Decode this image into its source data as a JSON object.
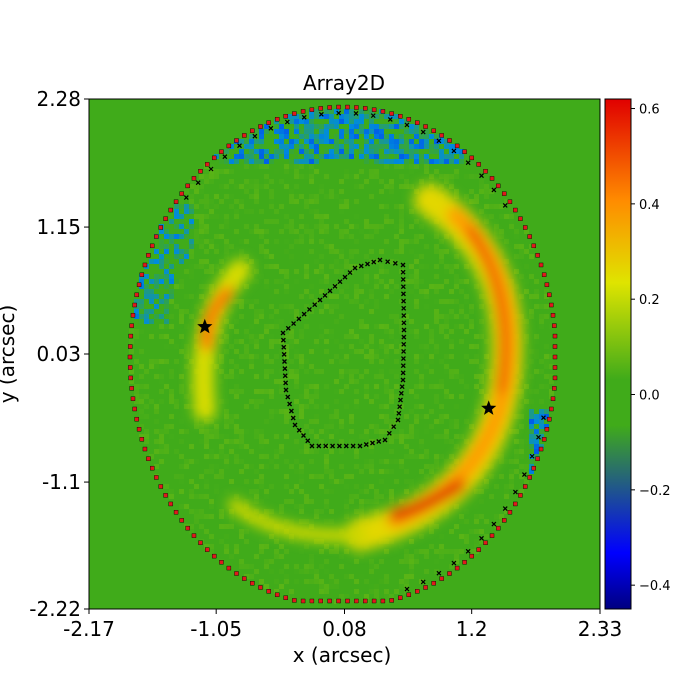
{
  "chart_data": {
    "type": "heatmap",
    "title": "Array2D",
    "xlabel": "x (arcsec)",
    "ylabel": "y (arcsec)",
    "xlim": [
      -2.17,
      2.33
    ],
    "ylim": [
      -2.22,
      2.28
    ],
    "x_tick_labels": [
      "-2.17",
      "-1.05",
      "0.08",
      "1.2",
      "2.33"
    ],
    "y_tick_labels": [
      "2.28",
      "1.15",
      "0.03",
      "-1.1",
      "-2.22"
    ],
    "x_ticks": [
      -2.17,
      -1.05,
      0.08,
      1.2,
      2.33
    ],
    "y_ticks": [
      2.28,
      1.15,
      0.03,
      -1.1,
      -2.22
    ],
    "colorbar": {
      "range": [
        -0.45,
        0.62
      ],
      "tick_values": [
        -0.4,
        -0.2,
        0.0,
        0.2,
        0.4,
        0.6
      ],
      "tick_labels": [
        "−0.4",
        "−0.2",
        "0.0",
        "0.2",
        "0.4",
        "0.6"
      ],
      "colormap": "jet"
    },
    "background_value": 0.0,
    "background_color": "#40ab1a",
    "features": {
      "outer_mask_border_color": "#e0191c",
      "inner_mask_border_color": "#000000",
      "lensed_arc_peak_value": 0.6,
      "positions_marker": "star",
      "positions": [
        [
          -1.15,
          0.27
        ],
        [
          1.35,
          -0.45
        ]
      ]
    }
  }
}
